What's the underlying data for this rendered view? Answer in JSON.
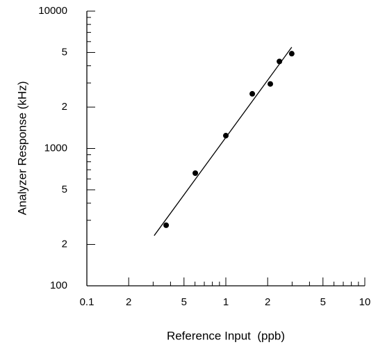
{
  "chart_data": {
    "type": "scatter",
    "xlabel": "Reference Input  (ppb)",
    "ylabel": "Analyzer Response (kHz)",
    "xscale": "log",
    "yscale": "log",
    "xlim": [
      0.1,
      10
    ],
    "ylim": [
      100,
      10000
    ],
    "xticks": [
      0.1,
      {
        "value": 0.2,
        "label": "2"
      },
      {
        "value": 0.5,
        "label": "5"
      },
      1,
      {
        "value": 2,
        "label": "2"
      },
      {
        "value": 5,
        "label": "5"
      },
      10
    ],
    "yticks": [
      100,
      {
        "value": 200,
        "label": "2"
      },
      {
        "value": 500,
        "label": "5"
      },
      1000,
      {
        "value": 2000,
        "label": "2"
      },
      {
        "value": 5000,
        "label": "5"
      },
      10000
    ],
    "xminorticks": [
      0.3,
      0.4,
      0.6,
      0.7,
      0.8,
      0.9,
      3,
      4,
      6,
      7,
      8,
      9
    ],
    "yminorticks": [
      300,
      400,
      600,
      700,
      800,
      900,
      3000,
      4000,
      6000,
      7000,
      8000,
      9000
    ],
    "series": [
      {
        "kind": "points",
        "color": "#000000",
        "x": [
          0.372,
          0.603,
          1.0,
          1.55,
          2.09,
          2.43,
          2.98
        ],
        "values": [
          276,
          661,
          1240,
          2500,
          2950,
          4300,
          4900
        ]
      },
      {
        "kind": "line",
        "color": "#000000",
        "x": [
          0.305,
          2.98
        ],
        "values": [
          232,
          5460
        ]
      }
    ]
  }
}
